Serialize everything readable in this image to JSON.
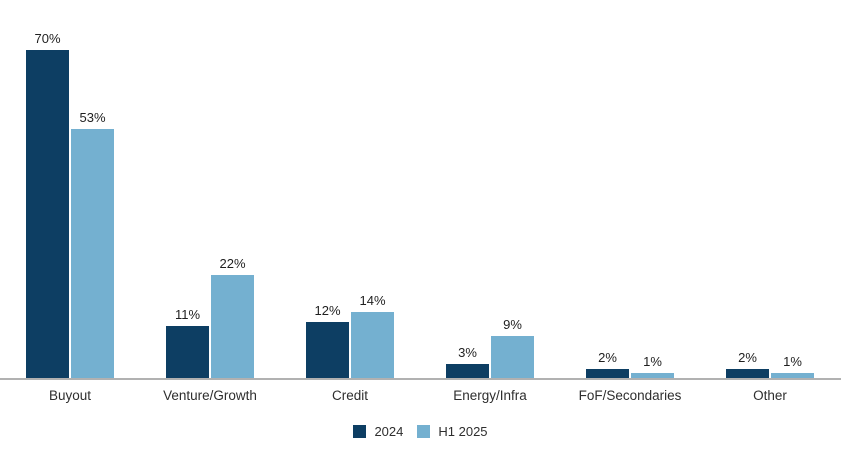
{
  "chart_data": {
    "type": "bar",
    "title": "",
    "categories": [
      "Buyout",
      "Venture/Growth",
      "Credit",
      "Energy/Infra",
      "FoF/Secondaries",
      "Other"
    ],
    "series": [
      {
        "name": "2024",
        "color": "#0d3e63",
        "values": [
          70,
          11,
          12,
          3,
          2,
          2
        ]
      },
      {
        "name": "H1 2025",
        "color": "#74b0d0",
        "values": [
          53,
          22,
          14,
          9,
          1,
          1
        ]
      }
    ],
    "value_suffix": "%",
    "value_labels_visible": true,
    "legend_position": "bottom",
    "y_axis_visible": false,
    "gridlines": false,
    "axis_line_color": "#b1b1b1",
    "ylim": [
      0,
      75
    ]
  }
}
